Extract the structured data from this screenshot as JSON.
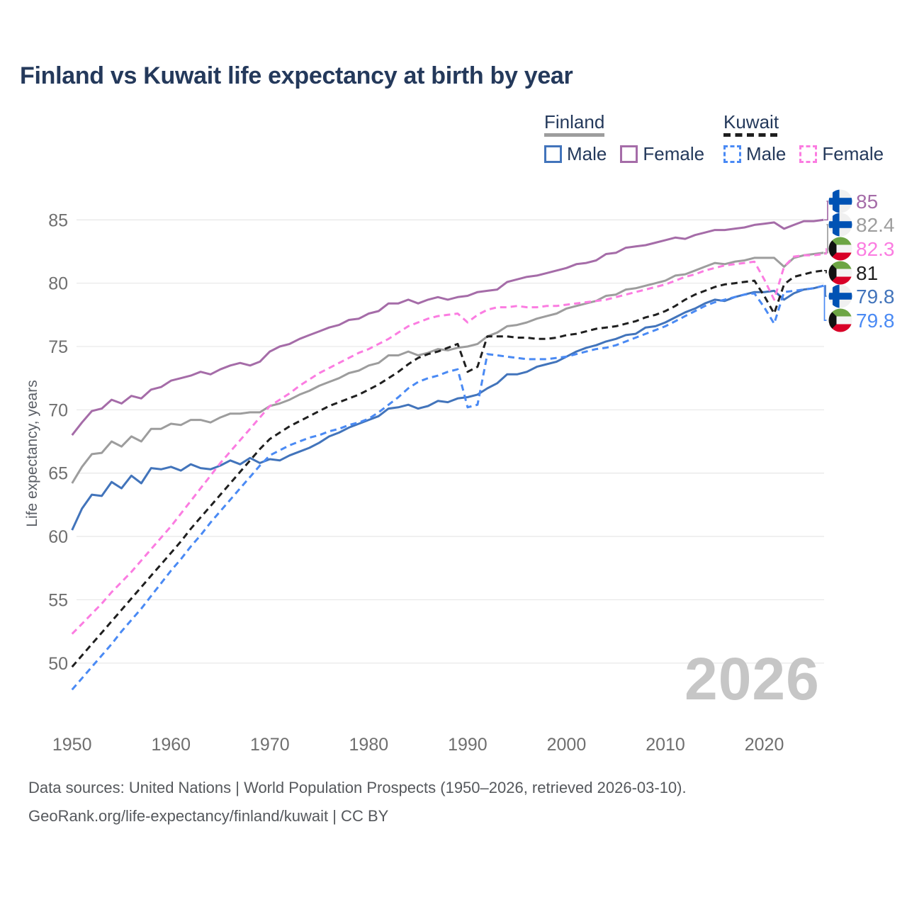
{
  "title": "Finland vs Kuwait life expectancy at birth by year",
  "y_axis_title": "Life expectancy, years",
  "watermark": "2026",
  "legend": {
    "finland": {
      "label": "Finland",
      "male_label": "Male",
      "female_label": "Female"
    },
    "kuwait": {
      "label": "Kuwait",
      "male_label": "Male",
      "female_label": "Female"
    }
  },
  "footer": {
    "line1": "Data sources: United Nations | World Population Prospects (1950–2026, retrieved 2026-03-10).",
    "line2": "GeoRank.org/life-expectancy/finland/kuwait | CC BY"
  },
  "colors": {
    "finland_male": "#4274bb",
    "finland_female": "#a56ca8",
    "finland_total": "#9d9d9d",
    "kuwait_male": "#4a8af4",
    "kuwait_female": "#fb7ce1",
    "kuwait_total": "#1f1f1f",
    "title_text": "#24395b",
    "grid": "#e9e9e9",
    "watermark": "#c6c6c6"
  },
  "end_labels": [
    {
      "flag": "finland",
      "label": "85",
      "series_index": 1,
      "color": "#a56ca8"
    },
    {
      "flag": "finland",
      "label": "82.4",
      "series_index": 0,
      "color": "#9d9d9d"
    },
    {
      "flag": "kuwait",
      "label": "82.3",
      "series_index": 3,
      "color": "#fb7ce1"
    },
    {
      "flag": "kuwait",
      "label": "81",
      "series_index": 4,
      "color": "#1f1f1f"
    },
    {
      "flag": "finland",
      "label": "79.8",
      "series_index": 2,
      "color": "#4274bb"
    },
    {
      "flag": "kuwait",
      "label": "79.8",
      "series_index": 5,
      "color": "#4a8af4"
    }
  ],
  "chart_data": {
    "type": "line",
    "title": "Finland vs Kuwait life expectancy at birth by year",
    "xlabel": "",
    "ylabel": "Life expectancy, years",
    "grid": "horizontal-only",
    "legend_position": "top-right",
    "xlim": [
      1950,
      2026
    ],
    "ylim": [
      46,
      87
    ],
    "x_ticks": [
      1950,
      1960,
      1970,
      1980,
      1990,
      2000,
      2010,
      2020
    ],
    "y_ticks": [
      85,
      80,
      75,
      70,
      65,
      60,
      55,
      50
    ],
    "years": [
      1950,
      1951,
      1952,
      1953,
      1954,
      1955,
      1956,
      1957,
      1958,
      1959,
      1960,
      1961,
      1962,
      1963,
      1964,
      1965,
      1966,
      1967,
      1968,
      1969,
      1970,
      1971,
      1972,
      1973,
      1974,
      1975,
      1976,
      1977,
      1978,
      1979,
      1980,
      1981,
      1982,
      1983,
      1984,
      1985,
      1986,
      1987,
      1988,
      1989,
      1990,
      1991,
      1992,
      1993,
      1994,
      1995,
      1996,
      1997,
      1998,
      1999,
      2000,
      2001,
      2002,
      2003,
      2004,
      2005,
      2006,
      2007,
      2008,
      2009,
      2010,
      2011,
      2012,
      2013,
      2014,
      2015,
      2016,
      2017,
      2018,
      2019,
      2020,
      2021,
      2022,
      2023,
      2024,
      2025,
      2026
    ],
    "series": [
      {
        "name": "Finland Total",
        "country": "Finland",
        "sex": "Both",
        "style": "solid",
        "color": "#9d9d9d",
        "values": [
          64.2,
          65.5,
          66.5,
          66.6,
          67.5,
          67.1,
          67.9,
          67.5,
          68.5,
          68.5,
          68.9,
          68.8,
          69.2,
          69.2,
          69.0,
          69.4,
          69.7,
          69.7,
          69.8,
          69.8,
          70.3,
          70.5,
          70.8,
          71.2,
          71.5,
          71.9,
          72.2,
          72.5,
          72.9,
          73.1,
          73.5,
          73.7,
          74.3,
          74.3,
          74.6,
          74.3,
          74.5,
          74.8,
          74.7,
          74.9,
          75.0,
          75.2,
          75.8,
          76.1,
          76.6,
          76.7,
          76.9,
          77.2,
          77.4,
          77.6,
          78.0,
          78.2,
          78.4,
          78.6,
          79.0,
          79.1,
          79.5,
          79.6,
          79.8,
          80.0,
          80.2,
          80.6,
          80.7,
          81.0,
          81.3,
          81.6,
          81.5,
          81.7,
          81.8,
          82.0,
          82.0,
          82.0,
          81.3,
          82.0,
          82.2,
          82.3,
          82.4
        ]
      },
      {
        "name": "Finland Female",
        "country": "Finland",
        "sex": "Female",
        "style": "solid",
        "color": "#a56ca8",
        "values": [
          68.0,
          69.0,
          69.9,
          70.1,
          70.8,
          70.5,
          71.1,
          70.9,
          71.6,
          71.8,
          72.3,
          72.5,
          72.7,
          73.0,
          72.8,
          73.2,
          73.5,
          73.7,
          73.5,
          73.8,
          74.6,
          75.0,
          75.2,
          75.6,
          75.9,
          76.2,
          76.5,
          76.7,
          77.1,
          77.2,
          77.6,
          77.8,
          78.4,
          78.4,
          78.7,
          78.4,
          78.7,
          78.9,
          78.7,
          78.9,
          79.0,
          79.3,
          79.4,
          79.5,
          80.1,
          80.3,
          80.5,
          80.6,
          80.8,
          81.0,
          81.2,
          81.5,
          81.6,
          81.8,
          82.3,
          82.4,
          82.8,
          82.9,
          83.0,
          83.2,
          83.4,
          83.6,
          83.5,
          83.8,
          84.0,
          84.2,
          84.2,
          84.3,
          84.4,
          84.6,
          84.7,
          84.8,
          84.3,
          84.6,
          84.9,
          84.9,
          85.0
        ]
      },
      {
        "name": "Finland Male",
        "country": "Finland",
        "sex": "Male",
        "style": "solid",
        "color": "#4274bb",
        "values": [
          60.5,
          62.2,
          63.3,
          63.2,
          64.3,
          63.8,
          64.8,
          64.2,
          65.4,
          65.3,
          65.5,
          65.2,
          65.7,
          65.4,
          65.3,
          65.6,
          66.0,
          65.7,
          66.2,
          65.8,
          66.1,
          66.0,
          66.4,
          66.7,
          67.0,
          67.4,
          67.9,
          68.2,
          68.6,
          68.9,
          69.2,
          69.5,
          70.1,
          70.2,
          70.4,
          70.1,
          70.3,
          70.7,
          70.6,
          70.9,
          71.0,
          71.2,
          71.7,
          72.1,
          72.8,
          72.8,
          73.0,
          73.4,
          73.6,
          73.8,
          74.2,
          74.6,
          74.9,
          75.1,
          75.4,
          75.6,
          75.9,
          76.0,
          76.5,
          76.6,
          76.9,
          77.3,
          77.7,
          78.0,
          78.4,
          78.7,
          78.6,
          78.9,
          79.1,
          79.3,
          79.3,
          79.4,
          78.7,
          79.2,
          79.5,
          79.6,
          79.8
        ]
      },
      {
        "name": "Kuwait Female",
        "country": "Kuwait",
        "sex": "Female",
        "style": "dashed",
        "color": "#fb7ce1",
        "values": [
          52.3,
          53.1,
          53.9,
          54.7,
          55.6,
          56.4,
          57.2,
          58.1,
          59.0,
          59.9,
          60.8,
          61.8,
          62.8,
          63.8,
          64.8,
          65.8,
          66.7,
          67.6,
          68.5,
          69.4,
          70.3,
          70.8,
          71.3,
          71.9,
          72.4,
          72.9,
          73.3,
          73.7,
          74.1,
          74.5,
          74.8,
          75.2,
          75.6,
          76.1,
          76.6,
          76.9,
          77.2,
          77.4,
          77.5,
          77.6,
          76.9,
          77.5,
          77.9,
          78.1,
          78.1,
          78.2,
          78.1,
          78.1,
          78.2,
          78.2,
          78.3,
          78.4,
          78.5,
          78.6,
          78.7,
          78.9,
          79.1,
          79.3,
          79.5,
          79.7,
          79.9,
          80.2,
          80.5,
          80.7,
          81.0,
          81.2,
          81.4,
          81.5,
          81.6,
          81.7,
          80.3,
          78.7,
          81.3,
          82.1,
          82.2,
          82.2,
          82.3
        ]
      },
      {
        "name": "Kuwait Total",
        "country": "Kuwait",
        "sex": "Both",
        "style": "dashed",
        "color": "#1f1f1f",
        "values": [
          49.7,
          50.6,
          51.5,
          52.4,
          53.3,
          54.2,
          55.1,
          56.0,
          56.9,
          57.8,
          58.7,
          59.6,
          60.6,
          61.5,
          62.4,
          63.3,
          64.2,
          65.1,
          66.0,
          66.9,
          67.7,
          68.2,
          68.7,
          69.1,
          69.5,
          69.9,
          70.3,
          70.6,
          70.9,
          71.2,
          71.6,
          72.0,
          72.5,
          73.0,
          73.6,
          74.1,
          74.4,
          74.6,
          74.9,
          75.2,
          73.0,
          73.4,
          75.8,
          75.8,
          75.8,
          75.7,
          75.7,
          75.6,
          75.6,
          75.7,
          75.9,
          76.0,
          76.2,
          76.4,
          76.5,
          76.6,
          76.8,
          77.0,
          77.3,
          77.5,
          77.8,
          78.2,
          78.7,
          79.1,
          79.4,
          79.7,
          79.9,
          80.0,
          80.1,
          80.2,
          79.0,
          77.6,
          79.9,
          80.5,
          80.7,
          80.9,
          81.0
        ]
      },
      {
        "name": "Kuwait Male",
        "country": "Kuwait",
        "sex": "Male",
        "style": "dashed",
        "color": "#4a8af4",
        "values": [
          47.9,
          48.8,
          49.7,
          50.6,
          51.5,
          52.5,
          53.4,
          54.3,
          55.3,
          56.3,
          57.3,
          58.2,
          59.2,
          60.1,
          61.1,
          62.0,
          62.9,
          63.8,
          64.7,
          65.6,
          66.4,
          66.8,
          67.2,
          67.5,
          67.8,
          68.0,
          68.3,
          68.5,
          68.8,
          69.0,
          69.3,
          69.8,
          70.4,
          71.0,
          71.7,
          72.2,
          72.5,
          72.7,
          73.0,
          73.2,
          70.2,
          70.4,
          74.4,
          74.3,
          74.2,
          74.1,
          74.0,
          74.0,
          74.0,
          74.1,
          74.2,
          74.4,
          74.6,
          74.8,
          74.9,
          75.1,
          75.4,
          75.7,
          76.0,
          76.3,
          76.6,
          77.0,
          77.4,
          77.8,
          78.2,
          78.5,
          78.7,
          78.9,
          79.1,
          79.2,
          78.1,
          76.8,
          79.3,
          79.4,
          79.5,
          79.6,
          79.8
        ]
      }
    ]
  }
}
